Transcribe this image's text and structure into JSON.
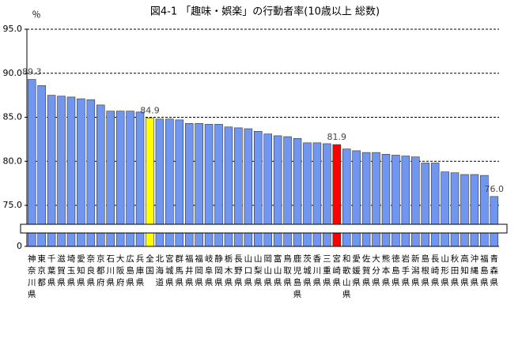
{
  "chart_data": {
    "type": "bar",
    "title": "図4-1 「趣味・娯楽」の行動者率(10歳以上 総数)",
    "y_label": "％",
    "categories": [
      "神奈川県",
      "東京都",
      "千葉県",
      "滋賀県",
      "埼玉県",
      "愛知県",
      "奈良県",
      "京都府",
      "石川県",
      "大阪府",
      "広島県",
      "兵庫県",
      "全国",
      "北海道",
      "宮城県",
      "群馬県",
      "福井県",
      "福岡県",
      "岐阜県",
      "静岡県",
      "栃木県",
      "長野県",
      "山口県",
      "山梨県",
      "岡山県",
      "富山県",
      "鳥取県",
      "鹿児島県",
      "茨城県",
      "香川県",
      "三重県",
      "宮崎県",
      "和歌山県",
      "愛媛県",
      "佐賀県",
      "大分県",
      "熊本県",
      "徳島県",
      "岩手県",
      "新潟県",
      "島根県",
      "長崎県",
      "山形県",
      "秋田県",
      "高知県",
      "沖縄県",
      "福島県",
      "青森県"
    ],
    "values": [
      89.3,
      88.6,
      87.5,
      87.4,
      87.3,
      87.1,
      87.0,
      86.4,
      85.7,
      85.7,
      85.7,
      85.6,
      84.9,
      84.8,
      84.8,
      84.7,
      84.3,
      84.3,
      84.2,
      84.2,
      83.9,
      83.8,
      83.7,
      83.4,
      83.1,
      82.9,
      82.8,
      82.6,
      82.1,
      82.1,
      82.0,
      81.9,
      81.4,
      81.2,
      81.0,
      81.0,
      80.8,
      80.7,
      80.6,
      80.5,
      79.8,
      79.8,
      78.8,
      78.7,
      78.5,
      78.5,
      78.4,
      76.0
    ],
    "value_labels": [
      "89.3",
      null,
      null,
      null,
      null,
      null,
      null,
      null,
      null,
      null,
      null,
      null,
      "84.9",
      null,
      null,
      null,
      null,
      null,
      null,
      null,
      null,
      null,
      null,
      null,
      null,
      null,
      null,
      null,
      null,
      null,
      null,
      "81.9",
      null,
      null,
      null,
      null,
      null,
      null,
      null,
      null,
      null,
      null,
      null,
      null,
      null,
      null,
      null,
      "76.0"
    ],
    "colors": [
      "#7096f0",
      "#7096f0",
      "#7096f0",
      "#7096f0",
      "#7096f0",
      "#7096f0",
      "#7096f0",
      "#7096f0",
      "#7096f0",
      "#7096f0",
      "#7096f0",
      "#7096f0",
      "#ffff00",
      "#7096f0",
      "#7096f0",
      "#7096f0",
      "#7096f0",
      "#7096f0",
      "#7096f0",
      "#7096f0",
      "#7096f0",
      "#7096f0",
      "#7096f0",
      "#7096f0",
      "#7096f0",
      "#7096f0",
      "#7096f0",
      "#7096f0",
      "#7096f0",
      "#7096f0",
      "#7096f0",
      "#ff0000",
      "#7096f0",
      "#7096f0",
      "#7096f0",
      "#7096f0",
      "#7096f0",
      "#7096f0",
      "#7096f0",
      "#7096f0",
      "#7096f0",
      "#7096f0",
      "#7096f0",
      "#7096f0",
      "#7096f0",
      "#7096f0",
      "#7096f0",
      "#7096f0"
    ],
    "ylim": [
      0,
      95
    ],
    "axis_break": [
      0,
      75
    ],
    "yticks": [
      0,
      {
        "value": 75,
        "label": "75.0"
      },
      {
        "value": 80,
        "label": "80.0"
      },
      {
        "value": 85,
        "label": "85.0"
      },
      {
        "value": 90,
        "label": "90.0"
      },
      {
        "value": 95,
        "label": "95.0"
      }
    ],
    "grid": true
  }
}
